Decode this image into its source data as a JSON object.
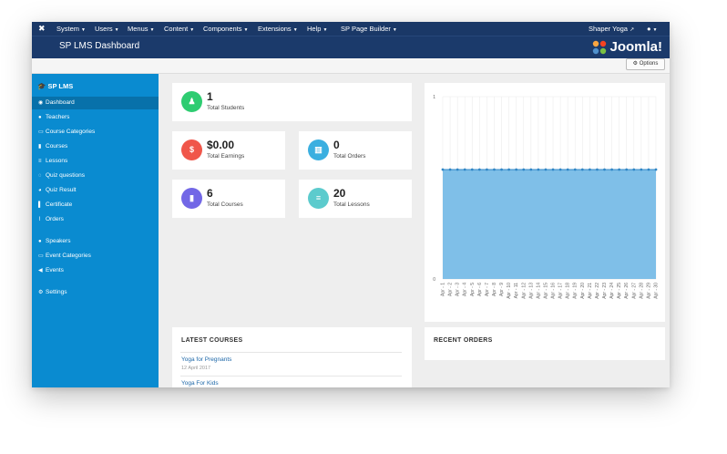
{
  "topbar": {
    "menus": [
      "System",
      "Users",
      "Menus",
      "Content",
      "Components",
      "Extensions",
      "Help",
      "SP Page Builder"
    ],
    "site_link": "Shaper Yoga",
    "user_icon": "user-icon"
  },
  "header": {
    "title": "SP LMS Dashboard",
    "logo_text": "Joomla!"
  },
  "toolbar": {
    "options_label": "Options"
  },
  "sidebar": {
    "brand": "SP LMS",
    "items": [
      {
        "label": "Dashboard",
        "icon": "dashboard-icon"
      },
      {
        "label": "Teachers",
        "icon": "users-icon"
      },
      {
        "label": "Course Categories",
        "icon": "folder-icon"
      },
      {
        "label": "Courses",
        "icon": "book-icon"
      },
      {
        "label": "Lessons",
        "icon": "list-icon"
      },
      {
        "label": "Quiz questions",
        "icon": "question-icon"
      },
      {
        "label": "Quiz Result",
        "icon": "pie-icon"
      },
      {
        "label": "Certificate",
        "icon": "bookmark-icon"
      },
      {
        "label": "Orders",
        "icon": "chart-icon"
      }
    ],
    "items2": [
      {
        "label": "Speakers",
        "icon": "users-icon"
      },
      {
        "label": "Event Categories",
        "icon": "folder-icon"
      },
      {
        "label": "Events",
        "icon": "megaphone-icon"
      }
    ],
    "items3": [
      {
        "label": "Settings",
        "icon": "gear-icon"
      }
    ]
  },
  "stats": {
    "students": {
      "value": "1",
      "label": "Total Students",
      "color": "#2ecc71"
    },
    "earnings": {
      "value": "$0.00",
      "label": "Total Earnings",
      "color": "#f0564a"
    },
    "orders": {
      "value": "0",
      "label": "Total Orders",
      "color": "#3bafe0"
    },
    "courses": {
      "value": "6",
      "label": "Total Courses",
      "color": "#7267e6"
    },
    "lessons": {
      "value": "20",
      "label": "Total Lessons",
      "color": "#5ccbcd"
    }
  },
  "latest_courses": {
    "title": "LATEST COURSES",
    "items": [
      {
        "name": "Yoga for Pregnants",
        "date": "12 April 2017"
      },
      {
        "name": "Yoga For Kids",
        "date": ""
      }
    ]
  },
  "recent_orders": {
    "title": "RECENT ORDERS"
  },
  "chart_data": {
    "type": "area",
    "categories": [
      "Apr - 1",
      "Apr - 2",
      "Apr - 3",
      "Apr - 4",
      "Apr - 5",
      "Apr - 6",
      "Apr - 7",
      "Apr - 8",
      "Apr - 9",
      "Apr - 10",
      "Apr - 11",
      "Apr - 12",
      "Apr - 13",
      "Apr - 14",
      "Apr - 15",
      "Apr - 16",
      "Apr - 17",
      "Apr - 18",
      "Apr - 19",
      "Apr - 20",
      "Apr - 21",
      "Apr - 22",
      "Apr - 23",
      "Apr - 24",
      "Apr - 25",
      "Apr - 26",
      "Apr - 27",
      "Apr - 28",
      "Apr - 29",
      "Apr - 30"
    ],
    "values": [
      0.6,
      0.6,
      0.6,
      0.6,
      0.6,
      0.6,
      0.6,
      0.6,
      0.6,
      0.6,
      0.6,
      0.6,
      0.6,
      0.6,
      0.6,
      0.6,
      0.6,
      0.6,
      0.6,
      0.6,
      0.6,
      0.6,
      0.6,
      0.6,
      0.6,
      0.6,
      0.6,
      0.6,
      0.6,
      0.6
    ],
    "yticks": [
      "1",
      "0"
    ],
    "ylim": [
      0,
      1
    ],
    "grid": true,
    "fill_color": "#7fbfe8",
    "line_color": "#2f86c6"
  }
}
